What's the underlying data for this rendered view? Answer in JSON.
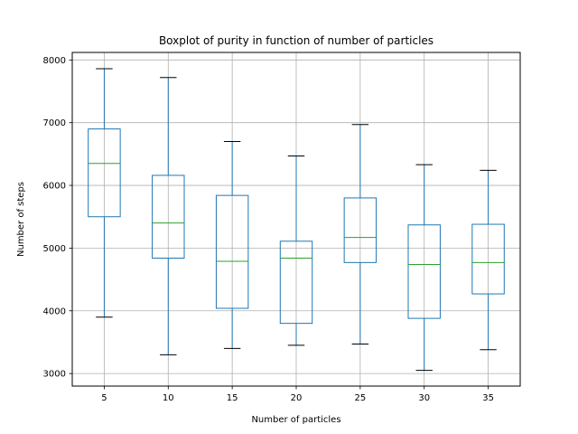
{
  "chart_data": {
    "type": "boxplot",
    "title": "Boxplot of purity in function of number of particles",
    "xlabel": "Number of particles",
    "ylabel": "Number of steps",
    "categories": [
      "5",
      "10",
      "15",
      "20",
      "25",
      "30",
      "35"
    ],
    "boxes": [
      {
        "category": "5",
        "whisker_low": 3900,
        "q1": 5500,
        "median": 6350,
        "q3": 6900,
        "whisker_high": 7860
      },
      {
        "category": "10",
        "whisker_low": 3300,
        "q1": 4840,
        "median": 5400,
        "q3": 6160,
        "whisker_high": 7720
      },
      {
        "category": "15",
        "whisker_low": 3400,
        "q1": 4040,
        "median": 4790,
        "q3": 5840,
        "whisker_high": 6700
      },
      {
        "category": "20",
        "whisker_low": 3450,
        "q1": 3800,
        "median": 4840,
        "q3": 5110,
        "whisker_high": 6470
      },
      {
        "category": "25",
        "whisker_low": 3470,
        "q1": 4770,
        "median": 5170,
        "q3": 5800,
        "whisker_high": 6970
      },
      {
        "category": "30",
        "whisker_low": 3050,
        "q1": 3880,
        "median": 4740,
        "q3": 5370,
        "whisker_high": 6330
      },
      {
        "category": "35",
        "whisker_low": 3380,
        "q1": 4270,
        "median": 4770,
        "q3": 5380,
        "whisker_high": 6240
      }
    ],
    "yticks": [
      "3000",
      "4000",
      "5000",
      "6000",
      "7000",
      "8000"
    ],
    "ylim": [
      2800,
      8120
    ],
    "grid": true,
    "colors": {
      "box": "#1f77b4",
      "median": "#2ca02c",
      "cap": "#000000",
      "grid": "#b0b0b0",
      "axes": "#000000"
    }
  }
}
